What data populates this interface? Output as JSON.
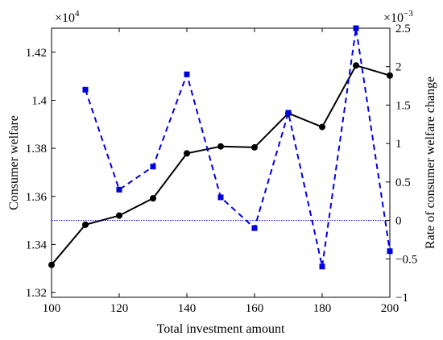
{
  "chart_data": {
    "type": "line",
    "xlabel": "Total investment amount",
    "ylabel_left": "Consumer welfare",
    "ylabel_right": "Rate of consumer welfare change",
    "left_multiplier": "×10",
    "left_exponent": "4",
    "right_multiplier": "×10",
    "right_exponent": "−3",
    "xlim": [
      100,
      200
    ],
    "ylim_left": [
      1.318,
      1.43
    ],
    "ylim_right": [
      -1.0,
      2.5
    ],
    "x_ticks": [
      100,
      120,
      140,
      160,
      180,
      200
    ],
    "x_tick_labels": [
      "100",
      "120",
      "140",
      "160",
      "180",
      "200"
    ],
    "y_left_ticks": [
      1.32,
      1.34,
      1.36,
      1.38,
      1.4,
      1.42
    ],
    "y_left_tick_labels": [
      "1.32",
      "1.34",
      "1.36",
      "1.38",
      "1.4",
      "1.42"
    ],
    "y_right_ticks": [
      -1,
      -0.5,
      0,
      0.5,
      1,
      1.5,
      2,
      2.5
    ],
    "y_right_tick_labels": [
      "−1",
      "−0.5",
      "0",
      "0.5",
      "1",
      "1.5",
      "2",
      "2.5"
    ],
    "reference_line_right": 0,
    "grid": false,
    "series": [
      {
        "axis": "left",
        "style": "solid",
        "marker": "circle",
        "color": "#000000",
        "x": [
          100,
          110,
          120,
          130,
          140,
          150,
          160,
          170,
          180,
          190,
          200
        ],
        "values": [
          1.3315,
          1.3482,
          1.352,
          1.3592,
          1.3779,
          1.3808,
          1.3804,
          1.3946,
          1.3889,
          1.4145,
          1.4103
        ]
      },
      {
        "axis": "right",
        "style": "dashed",
        "marker": "square",
        "color": "#0000dd",
        "x": [
          110,
          120,
          130,
          140,
          150,
          160,
          170,
          180,
          190,
          200
        ],
        "values": [
          1.7,
          0.4,
          0.7,
          1.9,
          0.3,
          -0.1,
          1.4,
          -0.6,
          2.5,
          -0.4
        ]
      }
    ]
  }
}
